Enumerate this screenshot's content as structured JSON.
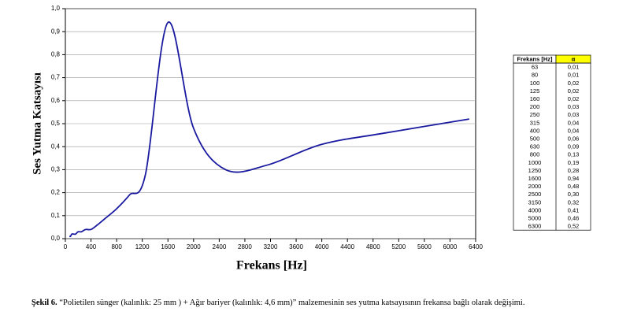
{
  "chart_data": {
    "type": "line",
    "xlabel": "Frekans [Hz]",
    "ylabel": "Ses Yutma Katsayısı",
    "x": [
      63,
      80,
      100,
      125,
      160,
      200,
      250,
      315,
      400,
      500,
      630,
      800,
      1000,
      1250,
      1600,
      2000,
      2500,
      3150,
      4000,
      5000,
      6300
    ],
    "series": [
      {
        "name": "α",
        "color": "#1a1aa0",
        "values": [
          0.01,
          0.01,
          0.02,
          0.02,
          0.02,
          0.03,
          0.03,
          0.04,
          0.04,
          0.06,
          0.09,
          0.13,
          0.19,
          0.28,
          0.94,
          0.48,
          0.3,
          0.32,
          0.41,
          0.46,
          0.52
        ]
      }
    ],
    "xlim": [
      0,
      6400
    ],
    "xticks": [
      0,
      400,
      800,
      1200,
      1600,
      2000,
      2400,
      2800,
      3200,
      3600,
      4000,
      4400,
      4800,
      5200,
      5600,
      6000,
      6400
    ],
    "ylim": [
      0,
      1
    ],
    "yticks": [
      {
        "value": 0,
        "label": "0,0"
      },
      {
        "value": 0.1,
        "label": "0,1"
      },
      {
        "value": 0.2,
        "label": "0,2"
      },
      {
        "value": 0.3,
        "label": "0,3"
      },
      {
        "value": 0.4,
        "label": "0,4"
      },
      {
        "value": 0.5,
        "label": "0,5"
      },
      {
        "value": 0.6,
        "label": "0,6"
      },
      {
        "value": 0.7,
        "label": "0,7"
      },
      {
        "value": 0.8,
        "label": "0,8"
      },
      {
        "value": 0.9,
        "label": "0,9"
      },
      {
        "value": 1,
        "label": "1,0"
      }
    ],
    "grid": true
  },
  "table": {
    "headers": [
      "Frekans [Hz]",
      "α"
    ],
    "rows": [
      [
        "63",
        "0,01"
      ],
      [
        "80",
        "0,01"
      ],
      [
        "100",
        "0,02"
      ],
      [
        "125",
        "0,02"
      ],
      [
        "160",
        "0,02"
      ],
      [
        "200",
        "0,03"
      ],
      [
        "250",
        "0,03"
      ],
      [
        "315",
        "0,04"
      ],
      [
        "400",
        "0,04"
      ],
      [
        "500",
        "0,06"
      ],
      [
        "630",
        "0,09"
      ],
      [
        "800",
        "0,13"
      ],
      [
        "1000",
        "0,19"
      ],
      [
        "1250",
        "0,28"
      ],
      [
        "1600",
        "0,94"
      ],
      [
        "2000",
        "0,48"
      ],
      [
        "2500",
        "0,30"
      ],
      [
        "3150",
        "0,32"
      ],
      [
        "4000",
        "0,41"
      ],
      [
        "5000",
        "0,46"
      ],
      [
        "6300",
        "0,52"
      ]
    ]
  },
  "caption": {
    "label": "Şekil 6.",
    "text": "“Polietilen sünger (kalınlık: 25 mm ) + Ağır bariyer (kalınlık: 4,6 mm)” malzemesinin ses yutma katsayısının frekansa bağlı olarak değişimi."
  }
}
